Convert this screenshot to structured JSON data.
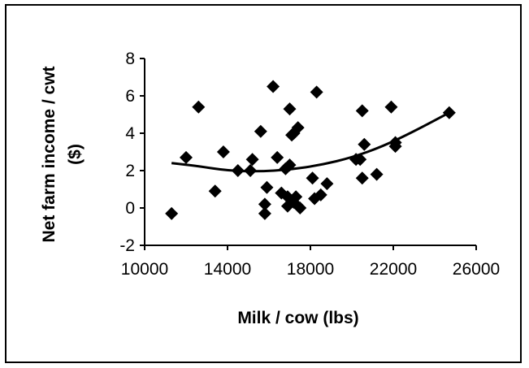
{
  "chart_data": {
    "type": "scatter",
    "title": "",
    "xlabel": "Milk / cow (lbs)",
    "ylabel_line1": "Net farm income / cwt",
    "ylabel_line2": "($)",
    "xlim": [
      10000,
      26000
    ],
    "ylim": [
      -2,
      8
    ],
    "x_ticks": [
      10000,
      14000,
      18000,
      22000,
      26000
    ],
    "y_ticks": [
      -2,
      0,
      2,
      4,
      6,
      8
    ],
    "x_tick_labels": [
      "10000",
      "14000",
      "18000",
      "22000",
      "26000"
    ],
    "y_tick_labels": [
      "-2",
      "0",
      "2",
      "4",
      "6",
      "8"
    ],
    "grid": false,
    "legend": "none",
    "marker": "diamond",
    "marker_color": "#000000",
    "points": [
      {
        "x": 11300,
        "y": -0.3
      },
      {
        "x": 12000,
        "y": 2.7
      },
      {
        "x": 12600,
        "y": 5.4
      },
      {
        "x": 13400,
        "y": 0.9
      },
      {
        "x": 13800,
        "y": 3.0
      },
      {
        "x": 14500,
        "y": 2.0
      },
      {
        "x": 15100,
        "y": 2.0
      },
      {
        "x": 15200,
        "y": 2.6
      },
      {
        "x": 15600,
        "y": 4.1
      },
      {
        "x": 15800,
        "y": 0.2
      },
      {
        "x": 15800,
        "y": -0.3
      },
      {
        "x": 15900,
        "y": 1.1
      },
      {
        "x": 16200,
        "y": 6.5
      },
      {
        "x": 16400,
        "y": 2.7
      },
      {
        "x": 16600,
        "y": 0.8
      },
      {
        "x": 16800,
        "y": 2.1
      },
      {
        "x": 16900,
        "y": 0.6
      },
      {
        "x": 16900,
        "y": 0.1
      },
      {
        "x": 17000,
        "y": 5.3
      },
      {
        "x": 17000,
        "y": 2.3
      },
      {
        "x": 17100,
        "y": 3.9
      },
      {
        "x": 17200,
        "y": 0.3
      },
      {
        "x": 17200,
        "y": 4.0
      },
      {
        "x": 17300,
        "y": 0.6
      },
      {
        "x": 17400,
        "y": 4.3
      },
      {
        "x": 17500,
        "y": 0.0
      },
      {
        "x": 18100,
        "y": 1.6
      },
      {
        "x": 18200,
        "y": 0.5
      },
      {
        "x": 18300,
        "y": 6.2
      },
      {
        "x": 18500,
        "y": 0.7
      },
      {
        "x": 18800,
        "y": 1.3
      },
      {
        "x": 20200,
        "y": 2.6
      },
      {
        "x": 20400,
        "y": 2.6
      },
      {
        "x": 20500,
        "y": 5.2
      },
      {
        "x": 20500,
        "y": 1.6
      },
      {
        "x": 20600,
        "y": 3.4
      },
      {
        "x": 21200,
        "y": 1.8
      },
      {
        "x": 21900,
        "y": 5.4
      },
      {
        "x": 22100,
        "y": 3.3
      },
      {
        "x": 22100,
        "y": 3.5
      },
      {
        "x": 24700,
        "y": 5.1
      }
    ],
    "trendline": {
      "type": "polynomial",
      "x": [
        11300,
        12500,
        14000,
        15500,
        17000,
        18500,
        20000,
        21500,
        23000,
        24700
      ],
      "y": [
        2.4,
        2.25,
        2.0,
        1.95,
        2.05,
        2.3,
        2.7,
        3.3,
        4.1,
        5.1
      ]
    }
  }
}
